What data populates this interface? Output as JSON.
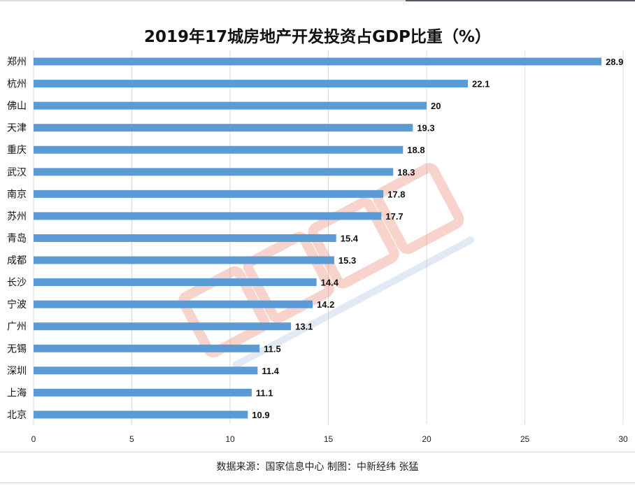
{
  "chart_data": {
    "type": "bar",
    "orientation": "horizontal",
    "title": "2019年17城房地产开发投资占GDP比重（%）",
    "categories": [
      "郑州",
      "杭州",
      "佛山",
      "天津",
      "重庆",
      "武汉",
      "南京",
      "苏州",
      "青岛",
      "成都",
      "长沙",
      "宁波",
      "广州",
      "无锡",
      "深圳",
      "上海",
      "北京"
    ],
    "values": [
      28.9,
      22.1,
      20,
      19.3,
      18.8,
      18.3,
      17.8,
      17.7,
      15.4,
      15.3,
      14.4,
      14.2,
      13.1,
      11.5,
      11.4,
      11.1,
      10.9
    ],
    "xlim": [
      0,
      30
    ],
    "xticks": [
      "0",
      "5",
      "10",
      "15",
      "20",
      "25",
      "30"
    ],
    "grid": "vertical",
    "bar_color": "#5b9bd5",
    "data_labels": true
  },
  "source": "数据来源：国家信息中心  制图：中新经纬 张猛",
  "watermark": {
    "main": "中新经纬",
    "sub": "ECONOMIC VIEW"
  }
}
